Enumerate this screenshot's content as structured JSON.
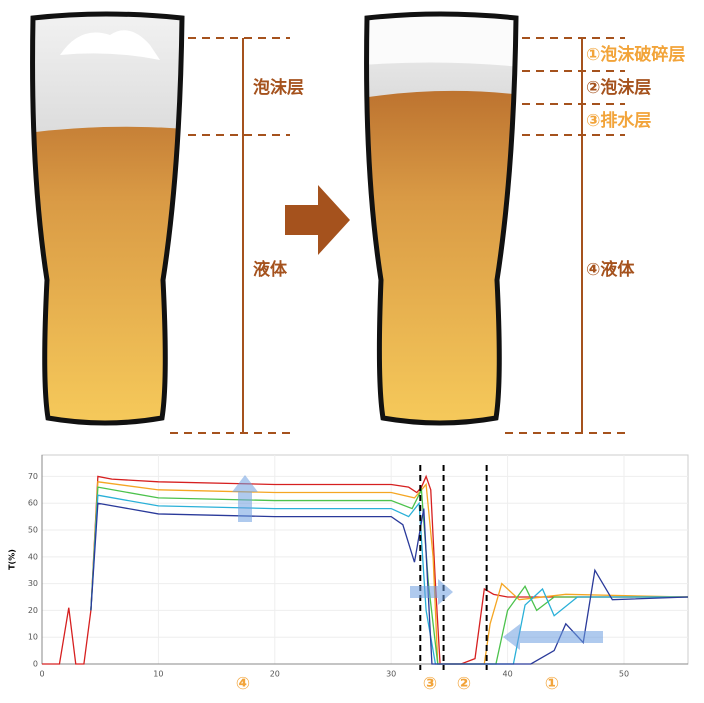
{
  "diagram": {
    "left_labels": [
      "泡沫层",
      "液体"
    ],
    "right_labels": [
      "①泡沫破碎层",
      "②泡沫层",
      "③排水层",
      "④液体"
    ]
  },
  "chart_data": {
    "type": "line",
    "ylabel": "T(%)",
    "xlim": [
      0,
      55.5
    ],
    "ylim": [
      0,
      78
    ],
    "xticks": [
      0,
      10,
      20,
      30,
      40,
      50
    ],
    "yticks": [
      0,
      10,
      20,
      30,
      40,
      50,
      60,
      70
    ],
    "grid": true,
    "vlines": [
      32.5,
      34.5,
      38.2
    ],
    "annotations": [
      "④",
      "③",
      "②",
      "①"
    ],
    "series": [
      {
        "color": "#d62020",
        "x": [
          0,
          1.5,
          2.3,
          2.9,
          3.6,
          4.2,
          4.8,
          6,
          10,
          20,
          30,
          31.5,
          32.2,
          32.6,
          33,
          33.4,
          33.8,
          34.2,
          36,
          37.2,
          38,
          38.8,
          40,
          45,
          50,
          55.5
        ],
        "values": [
          0,
          0,
          21,
          0,
          0,
          20,
          70,
          69,
          68,
          67,
          67,
          66,
          64,
          66,
          70,
          65,
          30,
          0,
          0,
          2,
          28,
          26,
          25,
          25,
          25,
          25
        ]
      },
      {
        "color": "#f5a623",
        "x": [
          4.2,
          4.8,
          10,
          20,
          30,
          32,
          33,
          33.6,
          34,
          38,
          38.5,
          39.5,
          41,
          45,
          55.5
        ],
        "values": [
          20,
          68,
          65,
          64,
          64,
          62,
          67,
          40,
          0,
          0,
          15,
          30,
          24,
          26,
          25
        ]
      },
      {
        "color": "#4cc24c",
        "x": [
          4.2,
          4.8,
          10,
          20,
          30,
          31.8,
          32.6,
          33.2,
          34,
          39,
          40,
          41.5,
          42.5,
          44,
          55.5
        ],
        "values": [
          20,
          66,
          62,
          61,
          61,
          58,
          65,
          30,
          0,
          0,
          20,
          29,
          20,
          25,
          25
        ]
      },
      {
        "color": "#2ab0d8",
        "x": [
          4.2,
          4.8,
          10,
          20,
          30,
          31.5,
          32.4,
          33,
          33.8,
          40.5,
          41.5,
          43,
          44,
          46,
          55.5
        ],
        "values": [
          20,
          63,
          59,
          58,
          58,
          55,
          60,
          20,
          0,
          0,
          22,
          28,
          18,
          25,
          25
        ]
      },
      {
        "color": "#2a3a9a",
        "x": [
          4.2,
          4.8,
          10,
          20,
          30,
          31,
          32,
          32.8,
          33.5,
          42,
          44,
          45,
          46.5,
          47.5,
          49,
          55.5
        ],
        "values": [
          20,
          60,
          56,
          55,
          55,
          52,
          38,
          58,
          0,
          0,
          5,
          15,
          8,
          35,
          24,
          25
        ]
      }
    ]
  }
}
